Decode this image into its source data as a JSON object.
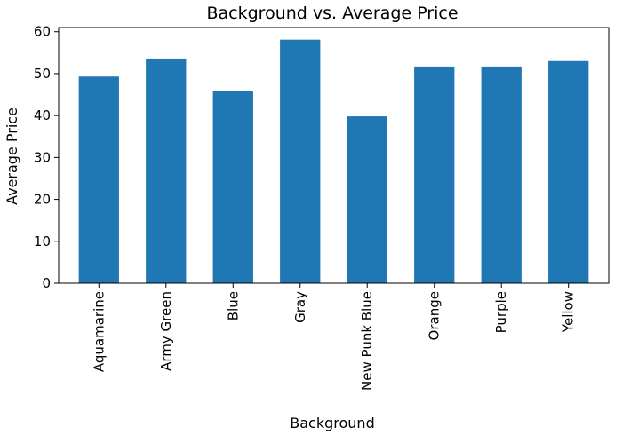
{
  "chart_data": {
    "type": "bar",
    "title": "Background vs. Average Price",
    "xlabel": "Background",
    "ylabel": "Average Price",
    "categories": [
      "Aquamarine",
      "Army Green",
      "Blue",
      "Gray",
      "New Punk Blue",
      "Orange",
      "Purple",
      "Yellow"
    ],
    "values": [
      49.3,
      53.6,
      45.9,
      58.1,
      39.8,
      51.7,
      51.7,
      53.0
    ],
    "ylim": [
      0,
      61
    ],
    "yticks": [
      0,
      10,
      20,
      30,
      40,
      50,
      60
    ],
    "bar_color": "#1f77b4",
    "grid": false,
    "legend": "none"
  }
}
